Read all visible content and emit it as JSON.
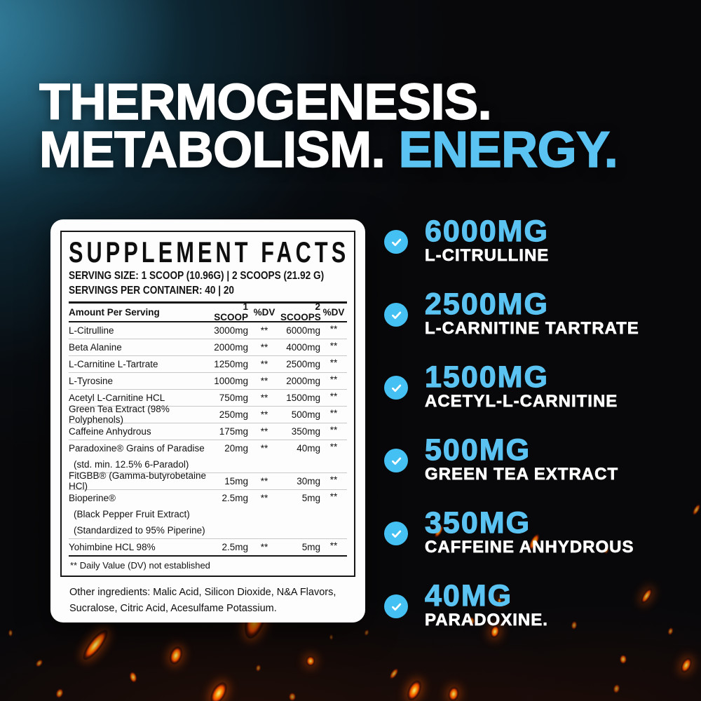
{
  "heading": {
    "line1": "THERMOGENESIS.",
    "line2_white": "METABOLISM. ",
    "line2_blue": "ENERGY."
  },
  "panel": {
    "title": "SUPPLEMENT FACTS",
    "serving_size": "SERVING SIZE: 1 SCOOP (10.96G) | 2 SCOOPS (21.92 G)",
    "servings_per_container": "SERVINGS PER CONTAINER: 40 | 20",
    "columns": {
      "name": "Amount Per Serving",
      "scoop1": "1 SCOOP",
      "dv1": "%DV",
      "scoop2": "2 SCOOPS",
      "dv2": "%DV"
    },
    "rows": [
      {
        "name": "L-Citrulline",
        "scoop1": "3000mg",
        "dv1": "**",
        "scoop2": "6000mg",
        "dv2": "**",
        "notes": []
      },
      {
        "name": "Beta Alanine",
        "scoop1": "2000mg",
        "dv1": "**",
        "scoop2": "4000mg",
        "dv2": "**",
        "notes": []
      },
      {
        "name": "L-Carnitine L-Tartrate",
        "scoop1": "1250mg",
        "dv1": "**",
        "scoop2": "2500mg",
        "dv2": "**",
        "notes": []
      },
      {
        "name": "L-Tyrosine",
        "scoop1": "1000mg",
        "dv1": "**",
        "scoop2": "2000mg",
        "dv2": "**",
        "notes": []
      },
      {
        "name": "Acetyl L-Carnitine HCL",
        "scoop1": "750mg",
        "dv1": "**",
        "scoop2": "1500mg",
        "dv2": "**",
        "notes": []
      },
      {
        "name": "Green Tea Extract (98% Polyphenols)",
        "scoop1": "250mg",
        "dv1": "**",
        "scoop2": "500mg",
        "dv2": "**",
        "notes": []
      },
      {
        "name": "Caffeine Anhydrous",
        "scoop1": "175mg",
        "dv1": "**",
        "scoop2": "350mg",
        "dv2": "**",
        "notes": []
      },
      {
        "name": "Paradoxine® Grains of Paradise",
        "scoop1": "20mg",
        "dv1": "**",
        "scoop2": "40mg",
        "dv2": "**",
        "notes": [
          "(std. min. 12.5% 6-Paradol)"
        ]
      },
      {
        "name": "FitGBB® (Gamma-butyrobetaine HCl)",
        "scoop1": "15mg",
        "dv1": "**",
        "scoop2": "30mg",
        "dv2": "**",
        "notes": []
      },
      {
        "name": "Bioperine®",
        "scoop1": "2.5mg",
        "dv1": "**",
        "scoop2": "5mg",
        "dv2": "**",
        "notes": [
          "(Black Pepper Fruit Extract)",
          "(Standardized to 95% Piperine)"
        ]
      },
      {
        "name": "Yohimbine HCL 98%",
        "scoop1": "2.5mg",
        "dv1": "**",
        "scoop2": "5mg",
        "dv2": "**",
        "notes": []
      }
    ],
    "footnote": "** Daily Value (DV) not established",
    "other_ingredients": "Other ingredients: Malic Acid, Silicon Dioxide, N&A Flavors, Sucralose, Citric Acid, Acesulfame Potassium."
  },
  "highlights": [
    {
      "amount": "6000MG",
      "name": "L-CITRULLINE"
    },
    {
      "amount": "2500MG",
      "name": "L-CARNITINE TARTRATE"
    },
    {
      "amount": "1500MG",
      "name": "ACETYL-L-CARNITINE"
    },
    {
      "amount": "500MG",
      "name": "GREEN TEA EXTRACT"
    },
    {
      "amount": "350MG",
      "name": "CAFFEINE ANHYDROUS"
    },
    {
      "amount": "40MG",
      "name": "PARADOXINE."
    }
  ],
  "colors": {
    "accent_blue": "#5BC3F1",
    "check_circle_blue": "#45C0F2",
    "panel_bg": "#FDFDFD",
    "ember_orange": "#FF5A00",
    "glow_teal": "#1C7699",
    "background": "#070709"
  }
}
